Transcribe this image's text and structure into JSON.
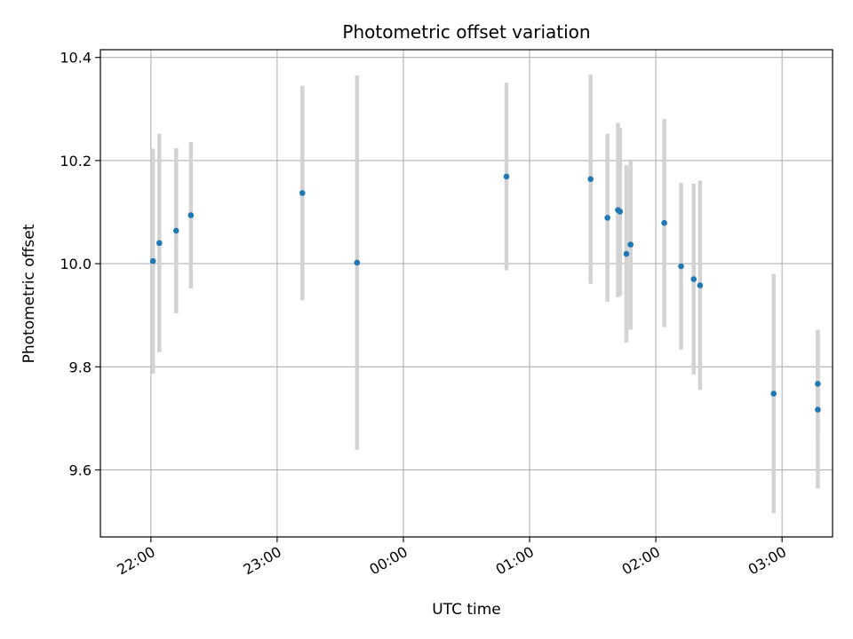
{
  "chart_data": {
    "type": "scatter",
    "title": "Photometric offset variation",
    "xlabel": "UTC time",
    "ylabel": "Photometric offset",
    "x_axis_kind": "time",
    "x_range_minutes_after_2200": [
      -24,
      324
    ],
    "xlim": [
      "21:36",
      "03:24"
    ],
    "ylim": [
      9.47,
      10.415
    ],
    "grid": true,
    "x_ticks": [
      {
        "label": "22:00",
        "minutes": 0
      },
      {
        "label": "23:00",
        "minutes": 60
      },
      {
        "label": "00:00",
        "minutes": 120
      },
      {
        "label": "01:00",
        "minutes": 180
      },
      {
        "label": "02:00",
        "minutes": 240
      },
      {
        "label": "03:00",
        "minutes": 300
      }
    ],
    "y_ticks": [
      {
        "label": "9.6",
        "value": 9.6
      },
      {
        "label": "9.8",
        "value": 9.8
      },
      {
        "label": "10.0",
        "value": 10.0
      },
      {
        "label": "10.2",
        "value": 10.2
      },
      {
        "label": "10.4",
        "value": 10.4
      }
    ],
    "colors": {
      "point": "#1f77b4",
      "errorbar": "#d3d3d3",
      "grid": "#b0b0b0"
    },
    "points": [
      {
        "time": "22:01",
        "y": 10.005,
        "err": 0.218
      },
      {
        "time": "22:04",
        "y": 10.04,
        "err": 0.212
      },
      {
        "time": "22:12",
        "y": 10.064,
        "err": 0.16
      },
      {
        "time": "22:19",
        "y": 10.094,
        "err": 0.142
      },
      {
        "time": "23:12",
        "y": 10.137,
        "err": 0.208
      },
      {
        "time": "23:38",
        "y": 10.002,
        "err": 0.363
      },
      {
        "time": "00:49",
        "y": 10.169,
        "err": 0.182
      },
      {
        "time": "01:29",
        "y": 10.164,
        "err": 0.203
      },
      {
        "time": "01:37",
        "y": 10.089,
        "err": 0.163
      },
      {
        "time": "01:42",
        "y": 10.104,
        "err": 0.169
      },
      {
        "time": "01:43",
        "y": 10.101,
        "err": 0.163
      },
      {
        "time": "01:46",
        "y": 10.019,
        "err": 0.172
      },
      {
        "time": "01:48",
        "y": 10.037,
        "err": 0.165
      },
      {
        "time": "02:04",
        "y": 10.079,
        "err": 0.202
      },
      {
        "time": "02:12",
        "y": 9.995,
        "err": 0.162
      },
      {
        "time": "02:18",
        "y": 9.97,
        "err": 0.185
      },
      {
        "time": "02:21",
        "y": 9.958,
        "err": 0.203
      },
      {
        "time": "02:56",
        "y": 9.748,
        "err": 0.232
      },
      {
        "time": "03:17",
        "y": 9.717,
        "err": 0.153
      },
      {
        "time": "03:17",
        "y": 9.767,
        "err": 0.105
      }
    ]
  }
}
